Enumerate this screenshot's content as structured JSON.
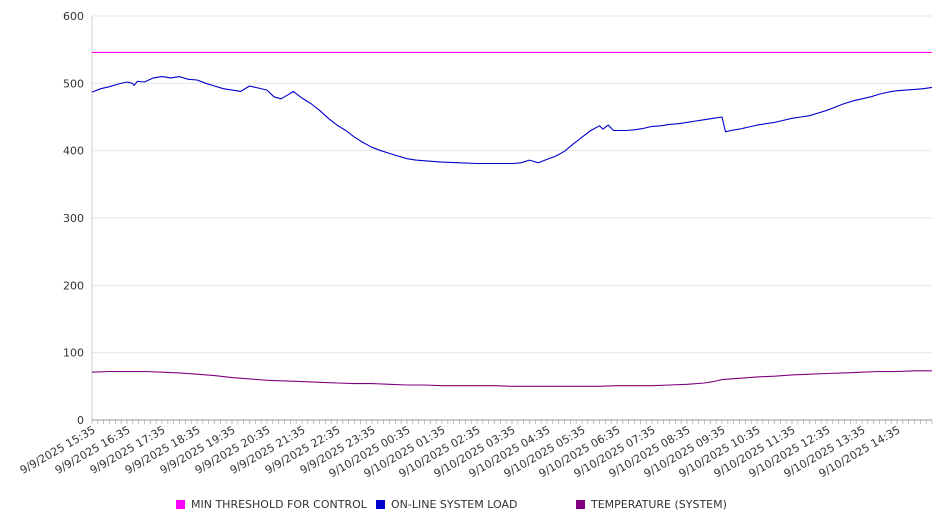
{
  "chart_data": {
    "type": "line",
    "ylim": [
      0,
      600
    ],
    "yticks": [
      0,
      100,
      200,
      300,
      400,
      500,
      600
    ],
    "x_tick_labels": [
      "9/9/2025 15:35",
      "9/9/2025 16:35",
      "9/9/2025 17:35",
      "9/9/2025 18:35",
      "9/9/2025 19:35",
      "9/9/2025 20:35",
      "9/9/2025 21:35",
      "9/9/2025 22:35",
      "9/9/2025 23:35",
      "9/10/2025 00:35",
      "9/10/2025 01:35",
      "9/10/2025 02:35",
      "9/10/2025 03:35",
      "9/10/2025 04:35",
      "9/10/2025 05:35",
      "9/10/2025 06:35",
      "9/10/2025 07:35",
      "9/10/2025 08:35",
      "9/10/2025 09:35",
      "9/10/2025 10:35",
      "9/10/2025 11:35",
      "9/10/2025 12:35",
      "9/10/2025 13:35",
      "9/10/2025 14:35"
    ],
    "x_range_hours": [
      0,
      24
    ],
    "grid": true,
    "legend_position": "bottom",
    "series": [
      {
        "name": "MIN THRESHOLD FOR CONTROL",
        "color": "#ff00ff",
        "points": [
          [
            0,
            546
          ],
          [
            24,
            546
          ]
        ]
      },
      {
        "name": "ON-LINE SYSTEM LOAD",
        "color": "#0000cc",
        "points": [
          [
            0,
            487
          ],
          [
            0.25,
            492
          ],
          [
            0.5,
            495
          ],
          [
            0.75,
            499
          ],
          [
            1.0,
            502
          ],
          [
            1.15,
            500
          ],
          [
            1.2,
            497
          ],
          [
            1.3,
            503
          ],
          [
            1.5,
            502
          ],
          [
            1.75,
            508
          ],
          [
            2.0,
            510
          ],
          [
            2.25,
            508
          ],
          [
            2.5,
            510
          ],
          [
            2.75,
            506
          ],
          [
            3.0,
            505
          ],
          [
            3.25,
            500
          ],
          [
            3.5,
            496
          ],
          [
            3.75,
            492
          ],
          [
            4.0,
            490
          ],
          [
            4.25,
            488
          ],
          [
            4.5,
            496
          ],
          [
            4.75,
            493
          ],
          [
            5.0,
            490
          ],
          [
            5.2,
            480
          ],
          [
            5.4,
            477
          ],
          [
            5.6,
            483
          ],
          [
            5.75,
            488
          ],
          [
            6.0,
            478
          ],
          [
            6.25,
            470
          ],
          [
            6.5,
            460
          ],
          [
            6.75,
            448
          ],
          [
            7.0,
            438
          ],
          [
            7.25,
            430
          ],
          [
            7.5,
            420
          ],
          [
            7.75,
            412
          ],
          [
            8.0,
            405
          ],
          [
            8.25,
            400
          ],
          [
            8.5,
            396
          ],
          [
            8.75,
            392
          ],
          [
            9.0,
            388
          ],
          [
            9.25,
            386
          ],
          [
            9.5,
            385
          ],
          [
            9.75,
            384
          ],
          [
            10.0,
            383
          ],
          [
            10.5,
            382
          ],
          [
            11.0,
            381
          ],
          [
            11.5,
            381
          ],
          [
            12.0,
            381
          ],
          [
            12.25,
            382
          ],
          [
            12.5,
            386
          ],
          [
            12.75,
            382
          ],
          [
            13.0,
            387
          ],
          [
            13.25,
            392
          ],
          [
            13.5,
            399
          ],
          [
            13.75,
            410
          ],
          [
            14.0,
            420
          ],
          [
            14.25,
            430
          ],
          [
            14.5,
            437
          ],
          [
            14.6,
            432
          ],
          [
            14.75,
            438
          ],
          [
            14.9,
            430
          ],
          [
            15.25,
            430
          ],
          [
            15.5,
            431
          ],
          [
            15.75,
            433
          ],
          [
            16.0,
            436
          ],
          [
            16.25,
            437
          ],
          [
            16.5,
            439
          ],
          [
            16.75,
            440
          ],
          [
            17.0,
            442
          ],
          [
            17.25,
            444
          ],
          [
            17.5,
            446
          ],
          [
            17.75,
            448
          ],
          [
            18.0,
            450
          ],
          [
            18.1,
            428
          ],
          [
            18.25,
            430
          ],
          [
            18.5,
            432
          ],
          [
            18.75,
            435
          ],
          [
            19.0,
            438
          ],
          [
            19.25,
            440
          ],
          [
            19.5,
            442
          ],
          [
            19.75,
            445
          ],
          [
            20.0,
            448
          ],
          [
            20.25,
            450
          ],
          [
            20.5,
            452
          ],
          [
            20.75,
            456
          ],
          [
            21.0,
            460
          ],
          [
            21.25,
            465
          ],
          [
            21.5,
            470
          ],
          [
            21.75,
            474
          ],
          [
            22.0,
            477
          ],
          [
            22.25,
            480
          ],
          [
            22.5,
            484
          ],
          [
            22.75,
            487
          ],
          [
            23.0,
            489
          ],
          [
            23.25,
            490
          ],
          [
            23.5,
            491
          ],
          [
            23.75,
            492
          ],
          [
            24.0,
            494
          ]
        ]
      },
      {
        "name": "TEMPERATURE (SYSTEM)",
        "color": "#800080",
        "points": [
          [
            0,
            71
          ],
          [
            0.5,
            72
          ],
          [
            1.0,
            72
          ],
          [
            1.5,
            72
          ],
          [
            2.0,
            71
          ],
          [
            2.5,
            70
          ],
          [
            3.0,
            68
          ],
          [
            3.5,
            66
          ],
          [
            4.0,
            63
          ],
          [
            4.5,
            61
          ],
          [
            5.0,
            59
          ],
          [
            5.5,
            58
          ],
          [
            6.0,
            57
          ],
          [
            6.5,
            56
          ],
          [
            7.0,
            55
          ],
          [
            7.5,
            54
          ],
          [
            8.0,
            54
          ],
          [
            8.5,
            53
          ],
          [
            9.0,
            52
          ],
          [
            9.5,
            52
          ],
          [
            10.0,
            51
          ],
          [
            10.5,
            51
          ],
          [
            11.0,
            51
          ],
          [
            11.5,
            51
          ],
          [
            12.0,
            50
          ],
          [
            12.5,
            50
          ],
          [
            13.0,
            50
          ],
          [
            13.5,
            50
          ],
          [
            14.0,
            50
          ],
          [
            14.5,
            50
          ],
          [
            15.0,
            51
          ],
          [
            15.5,
            51
          ],
          [
            16.0,
            51
          ],
          [
            16.5,
            52
          ],
          [
            17.0,
            53
          ],
          [
            17.5,
            55
          ],
          [
            17.75,
            57
          ],
          [
            18.0,
            60
          ],
          [
            18.5,
            62
          ],
          [
            19.0,
            64
          ],
          [
            19.5,
            65
          ],
          [
            20.0,
            67
          ],
          [
            20.5,
            68
          ],
          [
            21.0,
            69
          ],
          [
            21.5,
            70
          ],
          [
            22.0,
            71
          ],
          [
            22.5,
            72
          ],
          [
            23.0,
            72
          ],
          [
            23.5,
            73
          ],
          [
            24.0,
            73
          ]
        ]
      }
    ]
  },
  "legend": {
    "items": [
      {
        "label": "MIN THRESHOLD FOR CONTROL",
        "color": "#ff00ff"
      },
      {
        "label": "ON-LINE SYSTEM LOAD",
        "color": "#0000cc"
      },
      {
        "label": "TEMPERATURE (SYSTEM)",
        "color": "#800080"
      }
    ]
  }
}
